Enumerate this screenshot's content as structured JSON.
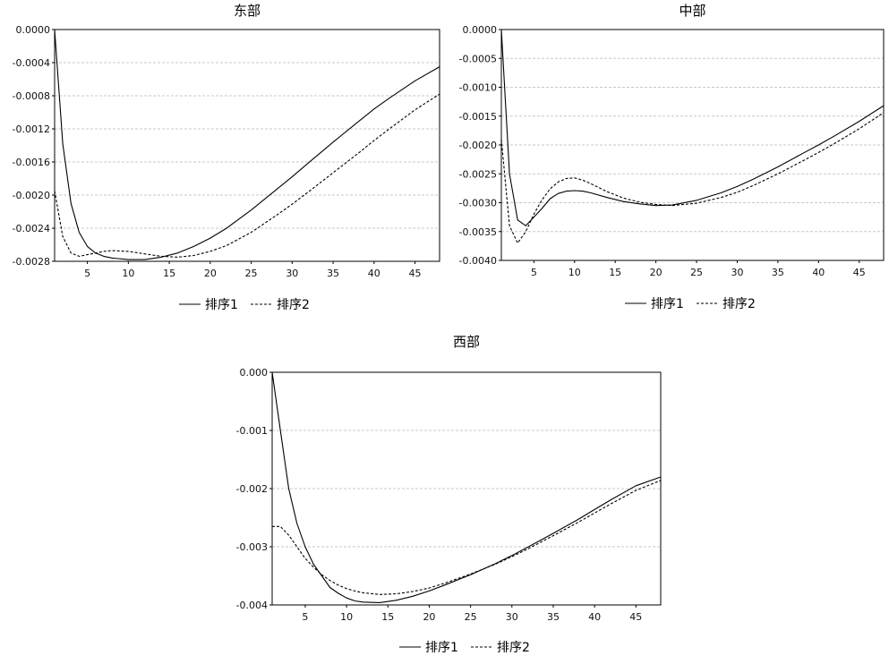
{
  "chart_data": [
    {
      "type": "line",
      "title": "东部",
      "xlim": [
        1,
        48
      ],
      "ylim": [
        -0.0028,
        0.0
      ],
      "xticks": [
        5,
        10,
        15,
        20,
        25,
        30,
        35,
        40,
        45
      ],
      "yticks": [
        0.0,
        -0.0004,
        -0.0008,
        -0.0012,
        -0.0016,
        -0.002,
        -0.0024,
        -0.0028
      ],
      "ytick_labels": [
        "0.0000",
        "-0.0004",
        "-0.0008",
        "-0.0012",
        "-0.0016",
        "-0.0020",
        "-0.0024",
        "-0.0028"
      ],
      "grid": true,
      "legend_position": "bottom-center",
      "series": [
        {
          "name": "排序1",
          "style": "solid",
          "x": [
            1,
            2,
            3,
            4,
            5,
            6,
            7,
            8,
            10,
            12,
            14,
            16,
            18,
            20,
            22,
            25,
            28,
            30,
            32,
            35,
            38,
            40,
            42,
            45,
            48
          ],
          "y": [
            0.0,
            -0.00138,
            -0.0021,
            -0.00245,
            -0.00262,
            -0.0027,
            -0.00274,
            -0.00276,
            -0.00278,
            -0.00278,
            -0.00275,
            -0.0027,
            -0.00262,
            -0.00252,
            -0.0024,
            -0.00218,
            -0.00194,
            -0.00178,
            -0.00161,
            -0.00136,
            -0.00112,
            -0.00096,
            -0.00082,
            -0.00062,
            -0.00045
          ]
        },
        {
          "name": "排序2",
          "style": "dashed",
          "x": [
            1,
            2,
            3,
            4,
            5,
            6,
            7,
            8,
            10,
            12,
            14,
            16,
            18,
            20,
            22,
            25,
            28,
            30,
            32,
            35,
            38,
            40,
            42,
            45,
            48
          ],
          "y": [
            -0.00195,
            -0.0025,
            -0.0027,
            -0.00274,
            -0.00272,
            -0.0027,
            -0.00268,
            -0.00267,
            -0.00268,
            -0.00271,
            -0.00274,
            -0.00275,
            -0.00273,
            -0.00268,
            -0.00261,
            -0.00245,
            -0.00225,
            -0.00211,
            -0.00196,
            -0.00173,
            -0.0015,
            -0.00134,
            -0.00119,
            -0.00097,
            -0.00078
          ]
        }
      ]
    },
    {
      "type": "line",
      "title": "中部",
      "xlim": [
        1,
        48
      ],
      "ylim": [
        -0.004,
        0.0
      ],
      "xticks": [
        5,
        10,
        15,
        20,
        25,
        30,
        35,
        40,
        45
      ],
      "yticks": [
        0.0,
        -0.0005,
        -0.001,
        -0.0015,
        -0.002,
        -0.0025,
        -0.003,
        -0.0035,
        -0.004
      ],
      "ytick_labels": [
        "0.0000",
        "-0.0005",
        "-0.0010",
        "-0.0015",
        "-0.0020",
        "-0.0025",
        "-0.0030",
        "-0.0035",
        "-0.0040"
      ],
      "grid": true,
      "legend_position": "bottom-center",
      "series": [
        {
          "name": "排序1",
          "style": "solid",
          "x": [
            1,
            2,
            3,
            4,
            5,
            6,
            7,
            8,
            9,
            10,
            11,
            12,
            14,
            16,
            18,
            20,
            22,
            25,
            28,
            30,
            32,
            35,
            38,
            40,
            42,
            45,
            48
          ],
          "y": [
            0.0,
            -0.0025,
            -0.0033,
            -0.0034,
            -0.00325,
            -0.0031,
            -0.00293,
            -0.00284,
            -0.0028,
            -0.00279,
            -0.0028,
            -0.00283,
            -0.00291,
            -0.00298,
            -0.00302,
            -0.00305,
            -0.00304,
            -0.00296,
            -0.00283,
            -0.00272,
            -0.00259,
            -0.00238,
            -0.00215,
            -0.002,
            -0.00184,
            -0.00159,
            -0.00132
          ]
        },
        {
          "name": "排序2",
          "style": "dashed",
          "x": [
            1,
            2,
            3,
            4,
            5,
            6,
            7,
            8,
            9,
            10,
            11,
            12,
            14,
            16,
            18,
            20,
            22,
            25,
            28,
            30,
            32,
            35,
            38,
            40,
            42,
            45,
            48
          ],
          "y": [
            -0.0019,
            -0.0034,
            -0.0037,
            -0.0035,
            -0.0032,
            -0.00295,
            -0.00276,
            -0.00264,
            -0.00258,
            -0.00257,
            -0.00261,
            -0.00267,
            -0.00281,
            -0.00292,
            -0.00299,
            -0.00303,
            -0.00305,
            -0.00301,
            -0.00291,
            -0.00282,
            -0.0027,
            -0.0025,
            -0.00228,
            -0.00213,
            -0.00197,
            -0.00172,
            -0.00144
          ]
        }
      ]
    },
    {
      "type": "line",
      "title": "西部",
      "xlim": [
        1,
        48
      ],
      "ylim": [
        -0.004,
        0.0
      ],
      "xticks": [
        5,
        10,
        15,
        20,
        25,
        30,
        35,
        40,
        45
      ],
      "yticks": [
        0.0,
        -0.001,
        -0.002,
        -0.003,
        -0.004
      ],
      "ytick_labels": [
        "0.000",
        "-0.001",
        "-0.002",
        "-0.003",
        "-0.004"
      ],
      "grid": true,
      "legend_position": "bottom-center",
      "series": [
        {
          "name": "排序1",
          "style": "solid",
          "x": [
            1,
            2,
            3,
            4,
            5,
            6,
            7,
            8,
            9,
            10,
            11,
            12,
            14,
            16,
            18,
            20,
            22,
            25,
            28,
            30,
            32,
            35,
            38,
            40,
            42,
            45,
            48
          ],
          "y": [
            0.0,
            -0.001,
            -0.002,
            -0.0026,
            -0.003,
            -0.0033,
            -0.0035,
            -0.0037,
            -0.0038,
            -0.00388,
            -0.00393,
            -0.00395,
            -0.00396,
            -0.00392,
            -0.00385,
            -0.00376,
            -0.00365,
            -0.00348,
            -0.00329,
            -0.00315,
            -0.003,
            -0.00277,
            -0.00253,
            -0.00236,
            -0.00219,
            -0.00195,
            -0.0018
          ]
        },
        {
          "name": "排序2",
          "style": "dashed",
          "x": [
            1,
            2,
            3,
            4,
            5,
            6,
            7,
            8,
            9,
            10,
            11,
            12,
            14,
            16,
            18,
            20,
            22,
            25,
            28,
            30,
            32,
            35,
            38,
            40,
            42,
            45,
            48
          ],
          "y": [
            -0.00265,
            -0.00265,
            -0.0028,
            -0.003,
            -0.0032,
            -0.00335,
            -0.00348,
            -0.00358,
            -0.00366,
            -0.00372,
            -0.00376,
            -0.00379,
            -0.00382,
            -0.00381,
            -0.00377,
            -0.00371,
            -0.00362,
            -0.00347,
            -0.0033,
            -0.00317,
            -0.00303,
            -0.00281,
            -0.00258,
            -0.00242,
            -0.00226,
            -0.00203,
            -0.00186
          ]
        }
      ]
    }
  ]
}
